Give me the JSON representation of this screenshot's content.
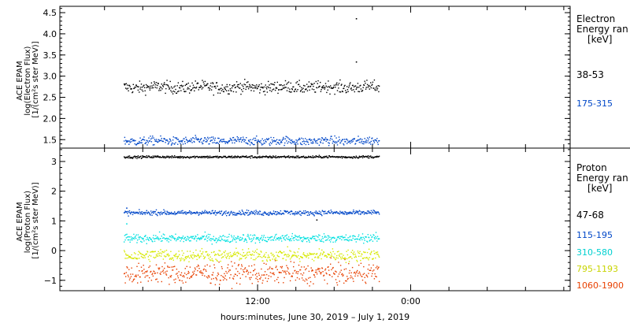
{
  "chart_data": [
    {
      "type": "scatter",
      "panel": "electron",
      "ylabel": [
        "ACE EPAM",
        "log(Electron Flux)",
        "[1/(cm²s ster MeV)]"
      ],
      "ylim": [
        1.3,
        4.65
      ],
      "yticks": [
        1.5,
        2.0,
        2.5,
        3.0,
        3.5,
        4.0,
        4.5
      ],
      "ytick_labels": [
        "1.5",
        "2.0",
        "2.5",
        "3.0",
        "3.5",
        "4.0",
        "4.5"
      ],
      "legend_title": [
        "Electron",
        "Energy ran",
        "[keV]"
      ],
      "legend_placement": "right",
      "series": [
        {
          "name": "38-53",
          "color": "#000000",
          "mean": 2.75,
          "spread": 0.07,
          "outliers": [
            {
              "x": 19.7,
              "y": 4.37
            },
            {
              "x": 19.7,
              "y": 3.35
            }
          ]
        },
        {
          "name": "175-315",
          "color": "#0047c8",
          "mean": 1.48,
          "spread": 0.05,
          "outliers": []
        }
      ]
    },
    {
      "type": "scatter",
      "panel": "proton",
      "ylabel": [
        "ACE EPAM",
        "log(Proton Flux)",
        "[1/(cm²s ster MeV)]"
      ],
      "ylim": [
        -1.35,
        3.45
      ],
      "yticks": [
        -1,
        0,
        1,
        2,
        3
      ],
      "ytick_labels": [
        "−1",
        "0",
        "1",
        "2",
        "3"
      ],
      "legend_title": [
        "Proton",
        "Energy ran",
        "[keV]"
      ],
      "legend_placement": "right",
      "series": [
        {
          "name": "47-68",
          "color": "#000000",
          "mean": 3.17,
          "spread": 0.02,
          "outliers": [
            {
              "x": 16.6,
              "y": 1.05
            }
          ]
        },
        {
          "name": "115-195",
          "color": "#0047c8",
          "mean": 1.29,
          "spread": 0.04,
          "outliers": [
            {
              "x": 1.7,
              "y": 1.45
            }
          ]
        },
        {
          "name": "310-580",
          "color": "#00e0e0",
          "mean": 0.43,
          "spread": 0.07,
          "outliers": [
            {
              "x": 1.7,
              "y": 0.92
            }
          ]
        },
        {
          "name": "795-1193",
          "color": "#d6e800",
          "mean": -0.14,
          "spread": 0.1,
          "outliers": []
        },
        {
          "name": "1060-1900",
          "color": "#e84000",
          "mean": -0.75,
          "spread": 0.17,
          "outliers": []
        }
      ]
    }
  ],
  "x_axis": {
    "xlim_hours": [
      -3.5,
      36.5
    ],
    "data_range_hours": [
      1.5,
      21.5
    ],
    "major_ticks_hours": [
      12,
      24
    ],
    "major_tick_labels": [
      "12:00",
      "0:00"
    ],
    "minor_tick_step_hours": 3,
    "xlabel": "hours:minutes, June 30, 2019 – July  1, 2019"
  }
}
